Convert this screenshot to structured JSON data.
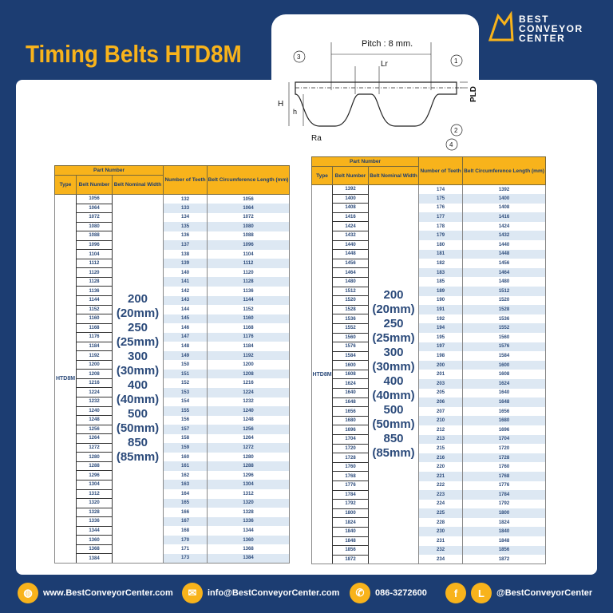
{
  "title": "Timing Belts HTD8M",
  "logo": {
    "line1": "BEST",
    "line2": "CONVEYOR",
    "line3": "CENTER"
  },
  "diagram": {
    "pitch": "Pitch : 8 mm.",
    "lr": "Lr",
    "pld": "PLD",
    "h_big": "H",
    "h_small": "h",
    "ra": "Ra",
    "c1": "1",
    "c2": "2",
    "c3": "3",
    "c4": "4"
  },
  "headers": {
    "part_number": "Part Number",
    "type": "Type",
    "belt_number": "Belt Number",
    "nominal_width": "Belt Nominal Width",
    "teeth": "Number of Teeth",
    "length": "Belt Circumference Length (mm)"
  },
  "type": "HTD8M",
  "widths": [
    "200",
    "(20mm)",
    "250",
    "(25mm)",
    "300",
    "(30mm)",
    "400",
    "(40mm)",
    "500",
    "(50mm)",
    "850",
    "(85mm)"
  ],
  "tables": [
    {
      "rows": [
        [
          "1056",
          "132",
          "1056"
        ],
        [
          "1064",
          "133",
          "1064"
        ],
        [
          "1072",
          "134",
          "1072"
        ],
        [
          "1080",
          "135",
          "1080"
        ],
        [
          "1088",
          "136",
          "1088"
        ],
        [
          "1096",
          "137",
          "1096"
        ],
        [
          "1104",
          "138",
          "1104"
        ],
        [
          "1112",
          "139",
          "1112"
        ],
        [
          "1120",
          "140",
          "1120"
        ],
        [
          "1128",
          "141",
          "1128"
        ],
        [
          "1136",
          "142",
          "1136"
        ],
        [
          "1144",
          "143",
          "1144"
        ],
        [
          "1152",
          "144",
          "1152"
        ],
        [
          "1160",
          "145",
          "1160"
        ],
        [
          "1168",
          "146",
          "1168"
        ],
        [
          "1176",
          "147",
          "1176"
        ],
        [
          "1184",
          "148",
          "1184"
        ],
        [
          "1192",
          "149",
          "1192"
        ],
        [
          "1200",
          "150",
          "1200"
        ],
        [
          "1208",
          "151",
          "1208"
        ],
        [
          "1216",
          "152",
          "1216"
        ],
        [
          "1224",
          "153",
          "1224"
        ],
        [
          "1232",
          "154",
          "1232"
        ],
        [
          "1240",
          "155",
          "1240"
        ],
        [
          "1248",
          "156",
          "1248"
        ],
        [
          "1256",
          "157",
          "1256"
        ],
        [
          "1264",
          "158",
          "1264"
        ],
        [
          "1272",
          "159",
          "1272"
        ],
        [
          "1280",
          "160",
          "1280"
        ],
        [
          "1288",
          "161",
          "1288"
        ],
        [
          "1296",
          "162",
          "1296"
        ],
        [
          "1304",
          "163",
          "1304"
        ],
        [
          "1312",
          "164",
          "1312"
        ],
        [
          "1320",
          "165",
          "1320"
        ],
        [
          "1328",
          "166",
          "1328"
        ],
        [
          "1336",
          "167",
          "1336"
        ],
        [
          "1344",
          "168",
          "1344"
        ],
        [
          "1360",
          "170",
          "1360"
        ],
        [
          "1368",
          "171",
          "1368"
        ],
        [
          "1384",
          "173",
          "1384"
        ]
      ]
    },
    {
      "rows": [
        [
          "1392",
          "174",
          "1392"
        ],
        [
          "1400",
          "175",
          "1400"
        ],
        [
          "1408",
          "176",
          "1408"
        ],
        [
          "1416",
          "177",
          "1416"
        ],
        [
          "1424",
          "178",
          "1424"
        ],
        [
          "1432",
          "179",
          "1432"
        ],
        [
          "1440",
          "180",
          "1440"
        ],
        [
          "1448",
          "181",
          "1448"
        ],
        [
          "1456",
          "182",
          "1456"
        ],
        [
          "1464",
          "183",
          "1464"
        ],
        [
          "1480",
          "185",
          "1480"
        ],
        [
          "1512",
          "189",
          "1512"
        ],
        [
          "1520",
          "190",
          "1520"
        ],
        [
          "1528",
          "191",
          "1528"
        ],
        [
          "1536",
          "192",
          "1536"
        ],
        [
          "1552",
          "194",
          "1552"
        ],
        [
          "1560",
          "195",
          "1560"
        ],
        [
          "1576",
          "197",
          "1576"
        ],
        [
          "1584",
          "198",
          "1584"
        ],
        [
          "1600",
          "200",
          "1600"
        ],
        [
          "1608",
          "201",
          "1608"
        ],
        [
          "1624",
          "203",
          "1624"
        ],
        [
          "1640",
          "205",
          "1640"
        ],
        [
          "1648",
          "206",
          "1648"
        ],
        [
          "1656",
          "207",
          "1656"
        ],
        [
          "1680",
          "210",
          "1680"
        ],
        [
          "1696",
          "212",
          "1696"
        ],
        [
          "1704",
          "213",
          "1704"
        ],
        [
          "1720",
          "215",
          "1720"
        ],
        [
          "1728",
          "216",
          "1728"
        ],
        [
          "1760",
          "220",
          "1760"
        ],
        [
          "1768",
          "221",
          "1768"
        ],
        [
          "1776",
          "222",
          "1776"
        ],
        [
          "1784",
          "223",
          "1784"
        ],
        [
          "1792",
          "224",
          "1792"
        ],
        [
          "1800",
          "225",
          "1800"
        ],
        [
          "1824",
          "228",
          "1824"
        ],
        [
          "1840",
          "230",
          "1840"
        ],
        [
          "1848",
          "231",
          "1848"
        ],
        [
          "1856",
          "232",
          "1856"
        ],
        [
          "1872",
          "234",
          "1872"
        ]
      ]
    }
  ],
  "footer": {
    "website": "www.BestConveyorCenter.com",
    "email": "info@BestConveyorCenter.com",
    "phone": "086-3272600",
    "social": "@BestConveyorCenter",
    "icons": [
      "globe-icon",
      "mail-icon",
      "phone-icon",
      "facebook-icon",
      "line-icon"
    ]
  },
  "colors": {
    "navy": "#1c3d72",
    "orange": "#f8b31b",
    "stripe": "#dde8f3"
  }
}
